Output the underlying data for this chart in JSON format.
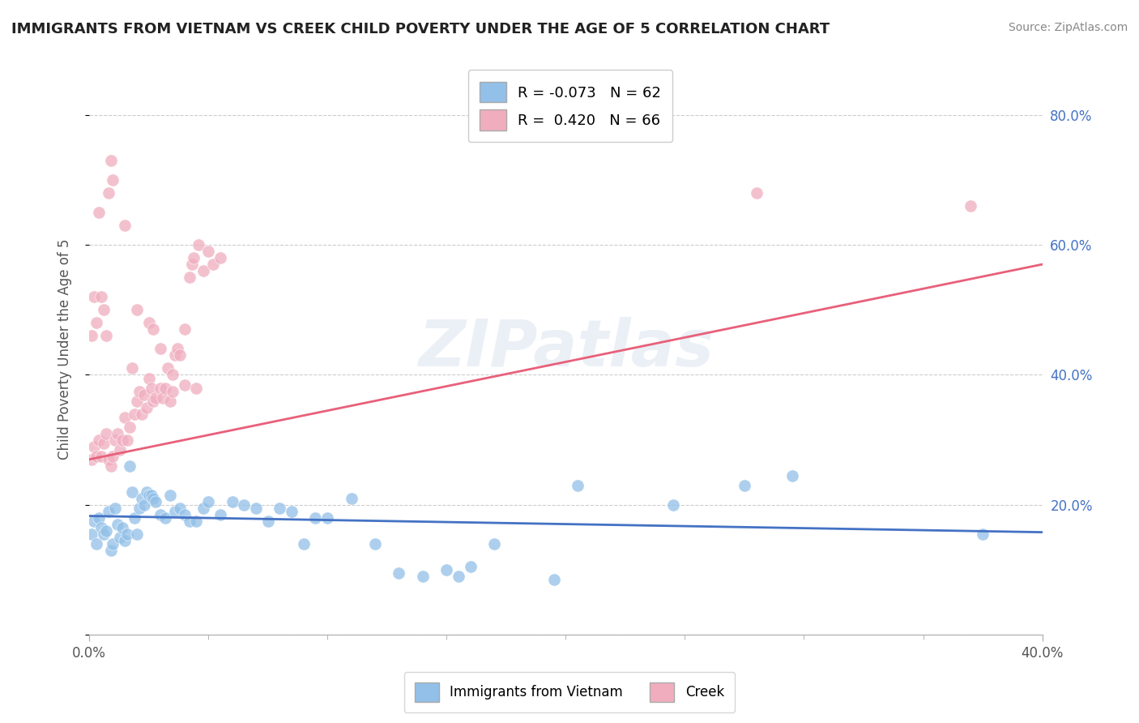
{
  "title": "IMMIGRANTS FROM VIETNAM VS CREEK CHILD POVERTY UNDER THE AGE OF 5 CORRELATION CHART",
  "source": "Source: ZipAtlas.com",
  "ylabel": "Child Poverty Under the Age of 5",
  "xlim": [
    0.0,
    0.4
  ],
  "ylim": [
    0.0,
    0.88
  ],
  "ytick_positions": [
    0.0,
    0.2,
    0.4,
    0.6,
    0.8
  ],
  "ytick_labels": [
    "",
    "20.0%",
    "40.0%",
    "60.0%",
    "80.0%"
  ],
  "blue_color": "#92C0E8",
  "pink_color": "#F0ADBE",
  "blue_line_color": "#4472C4",
  "pink_line_color": "#E8607A",
  "R_blue": -0.073,
  "N_blue": 62,
  "R_pink": 0.42,
  "N_pink": 66,
  "legend_label_blue": "Immigrants from Vietnam",
  "legend_label_pink": "Creek",
  "watermark": "ZIPatlas",
  "blue_trend": [
    0.0,
    0.4,
    0.183,
    0.158
  ],
  "pink_trend": [
    0.0,
    0.4,
    0.27,
    0.57
  ],
  "blue_scatter": [
    [
      0.001,
      0.155
    ],
    [
      0.002,
      0.175
    ],
    [
      0.003,
      0.14
    ],
    [
      0.004,
      0.18
    ],
    [
      0.005,
      0.165
    ],
    [
      0.006,
      0.155
    ],
    [
      0.007,
      0.16
    ],
    [
      0.008,
      0.19
    ],
    [
      0.009,
      0.13
    ],
    [
      0.01,
      0.14
    ],
    [
      0.011,
      0.195
    ],
    [
      0.012,
      0.17
    ],
    [
      0.013,
      0.15
    ],
    [
      0.014,
      0.165
    ],
    [
      0.015,
      0.145
    ],
    [
      0.016,
      0.155
    ],
    [
      0.017,
      0.26
    ],
    [
      0.018,
      0.22
    ],
    [
      0.019,
      0.18
    ],
    [
      0.02,
      0.155
    ],
    [
      0.021,
      0.195
    ],
    [
      0.022,
      0.21
    ],
    [
      0.023,
      0.2
    ],
    [
      0.024,
      0.22
    ],
    [
      0.025,
      0.215
    ],
    [
      0.026,
      0.215
    ],
    [
      0.027,
      0.21
    ],
    [
      0.028,
      0.205
    ],
    [
      0.03,
      0.185
    ],
    [
      0.032,
      0.18
    ],
    [
      0.034,
      0.215
    ],
    [
      0.036,
      0.19
    ],
    [
      0.038,
      0.195
    ],
    [
      0.04,
      0.185
    ],
    [
      0.042,
      0.175
    ],
    [
      0.045,
      0.175
    ],
    [
      0.048,
      0.195
    ],
    [
      0.05,
      0.205
    ],
    [
      0.055,
      0.185
    ],
    [
      0.06,
      0.205
    ],
    [
      0.065,
      0.2
    ],
    [
      0.07,
      0.195
    ],
    [
      0.075,
      0.175
    ],
    [
      0.08,
      0.195
    ],
    [
      0.085,
      0.19
    ],
    [
      0.09,
      0.14
    ],
    [
      0.095,
      0.18
    ],
    [
      0.1,
      0.18
    ],
    [
      0.11,
      0.21
    ],
    [
      0.12,
      0.14
    ],
    [
      0.13,
      0.095
    ],
    [
      0.14,
      0.09
    ],
    [
      0.15,
      0.1
    ],
    [
      0.155,
      0.09
    ],
    [
      0.16,
      0.105
    ],
    [
      0.17,
      0.14
    ],
    [
      0.195,
      0.085
    ],
    [
      0.205,
      0.23
    ],
    [
      0.245,
      0.2
    ],
    [
      0.275,
      0.23
    ],
    [
      0.295,
      0.245
    ],
    [
      0.375,
      0.155
    ]
  ],
  "pink_scatter": [
    [
      0.001,
      0.27
    ],
    [
      0.002,
      0.29
    ],
    [
      0.003,
      0.275
    ],
    [
      0.004,
      0.3
    ],
    [
      0.005,
      0.275
    ],
    [
      0.006,
      0.295
    ],
    [
      0.007,
      0.31
    ],
    [
      0.008,
      0.27
    ],
    [
      0.009,
      0.26
    ],
    [
      0.01,
      0.275
    ],
    [
      0.011,
      0.3
    ],
    [
      0.012,
      0.31
    ],
    [
      0.013,
      0.285
    ],
    [
      0.014,
      0.3
    ],
    [
      0.015,
      0.335
    ],
    [
      0.016,
      0.3
    ],
    [
      0.017,
      0.32
    ],
    [
      0.018,
      0.41
    ],
    [
      0.019,
      0.34
    ],
    [
      0.02,
      0.36
    ],
    [
      0.021,
      0.375
    ],
    [
      0.022,
      0.34
    ],
    [
      0.023,
      0.37
    ],
    [
      0.024,
      0.35
    ],
    [
      0.025,
      0.395
    ],
    [
      0.026,
      0.38
    ],
    [
      0.027,
      0.36
    ],
    [
      0.028,
      0.365
    ],
    [
      0.03,
      0.38
    ],
    [
      0.031,
      0.365
    ],
    [
      0.032,
      0.38
    ],
    [
      0.033,
      0.41
    ],
    [
      0.034,
      0.36
    ],
    [
      0.035,
      0.375
    ],
    [
      0.036,
      0.43
    ],
    [
      0.037,
      0.44
    ],
    [
      0.038,
      0.43
    ],
    [
      0.04,
      0.47
    ],
    [
      0.042,
      0.55
    ],
    [
      0.043,
      0.57
    ],
    [
      0.044,
      0.58
    ],
    [
      0.046,
      0.6
    ],
    [
      0.048,
      0.56
    ],
    [
      0.05,
      0.59
    ],
    [
      0.052,
      0.57
    ],
    [
      0.055,
      0.58
    ],
    [
      0.001,
      0.46
    ],
    [
      0.002,
      0.52
    ],
    [
      0.003,
      0.48
    ],
    [
      0.004,
      0.65
    ],
    [
      0.005,
      0.52
    ],
    [
      0.006,
      0.5
    ],
    [
      0.007,
      0.46
    ],
    [
      0.008,
      0.68
    ],
    [
      0.009,
      0.73
    ],
    [
      0.01,
      0.7
    ],
    [
      0.015,
      0.63
    ],
    [
      0.02,
      0.5
    ],
    [
      0.025,
      0.48
    ],
    [
      0.027,
      0.47
    ],
    [
      0.03,
      0.44
    ],
    [
      0.035,
      0.4
    ],
    [
      0.04,
      0.385
    ],
    [
      0.045,
      0.38
    ],
    [
      0.28,
      0.68
    ],
    [
      0.37,
      0.66
    ]
  ]
}
